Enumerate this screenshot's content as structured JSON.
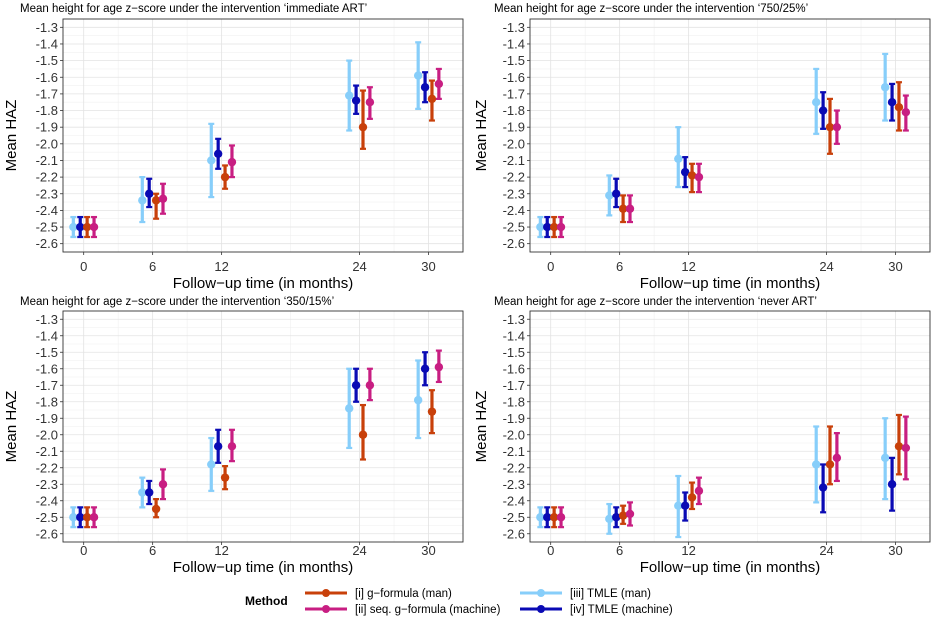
{
  "chart_data": {
    "type": "errorbar",
    "x_ticks": [
      0,
      6,
      12,
      24,
      30
    ],
    "y_ticks": [
      -1.3,
      -1.4,
      -1.5,
      -1.6,
      -1.7,
      -1.8,
      -1.9,
      -2.0,
      -2.1,
      -2.2,
      -2.3,
      -2.4,
      -2.5,
      -2.6
    ],
    "y_tick_labels": [
      "-1.3",
      "-1.4",
      "-1.5",
      "-1.6",
      "-1.7",
      "-1.8",
      "-1.9",
      "-2.0",
      "-2.1",
      "-2.2",
      "-2.3",
      "-2.4",
      "-2.5",
      "-2.6"
    ],
    "x_tick_labels": [
      "0",
      "6",
      "12",
      "24",
      "30"
    ],
    "xlim": [
      -1.8,
      33
    ],
    "ylim": [
      -2.65,
      -1.25
    ],
    "xlabel": "Follow−up time (in months)",
    "ylabel": "Mean HAZ",
    "legend": {
      "title": "Method",
      "position": "bottom",
      "entries": [
        {
          "method": "gform",
          "label": "[i] g−formula (man)"
        },
        {
          "method": "seqg",
          "label": "[ii] seq. g−formula (machine)"
        },
        {
          "method": "tmle_man",
          "label": "[iii] TMLE (man)"
        },
        {
          "method": "tmle_mach",
          "label": "[iv] TMLE (machine)"
        }
      ]
    },
    "method_colors": {
      "tmle_man": "#87cefa",
      "tmle_mach": "#0a0ab4",
      "gform": "#c8400a",
      "seqg": "#c81e82"
    },
    "method_offsets": {
      "tmle_man": -0.9,
      "tmle_mach": -0.3,
      "gform": 0.3,
      "seqg": 0.9
    },
    "panels": [
      {
        "title": "Mean height for age z−score  under the intervention ‘immediate ART’",
        "series": [
          {
            "method": "tmle_man",
            "points": [
              {
                "x": 0,
                "y": -2.5,
                "lo": -2.56,
                "hi": -2.44
              },
              {
                "x": 6,
                "y": -2.34,
                "lo": -2.47,
                "hi": -2.2
              },
              {
                "x": 12,
                "y": -2.1,
                "lo": -2.32,
                "hi": -1.88
              },
              {
                "x": 24,
                "y": -1.71,
                "lo": -1.92,
                "hi": -1.5
              },
              {
                "x": 30,
                "y": -1.59,
                "lo": -1.79,
                "hi": -1.39
              }
            ]
          },
          {
            "method": "tmle_mach",
            "points": [
              {
                "x": 0,
                "y": -2.5,
                "lo": -2.56,
                "hi": -2.44
              },
              {
                "x": 6,
                "y": -2.3,
                "lo": -2.38,
                "hi": -2.21
              },
              {
                "x": 12,
                "y": -2.06,
                "lo": -2.15,
                "hi": -1.97
              },
              {
                "x": 24,
                "y": -1.74,
                "lo": -1.82,
                "hi": -1.65
              },
              {
                "x": 30,
                "y": -1.66,
                "lo": -1.75,
                "hi": -1.57
              }
            ]
          },
          {
            "method": "gform",
            "points": [
              {
                "x": 0,
                "y": -2.5,
                "lo": -2.56,
                "hi": -2.44
              },
              {
                "x": 6,
                "y": -2.34,
                "lo": -2.45,
                "hi": -2.3
              },
              {
                "x": 12,
                "y": -2.2,
                "lo": -2.27,
                "hi": -2.13
              },
              {
                "x": 24,
                "y": -1.9,
                "lo": -2.03,
                "hi": -1.68
              },
              {
                "x": 30,
                "y": -1.73,
                "lo": -1.86,
                "hi": -1.62
              }
            ]
          },
          {
            "method": "seqg",
            "points": [
              {
                "x": 0,
                "y": -2.5,
                "lo": -2.56,
                "hi": -2.44
              },
              {
                "x": 6,
                "y": -2.33,
                "lo": -2.42,
                "hi": -2.24
              },
              {
                "x": 12,
                "y": -2.11,
                "lo": -2.2,
                "hi": -2.01
              },
              {
                "x": 24,
                "y": -1.75,
                "lo": -1.85,
                "hi": -1.66
              },
              {
                "x": 30,
                "y": -1.64,
                "lo": -1.73,
                "hi": -1.55
              }
            ]
          }
        ]
      },
      {
        "title": "Mean height for age z−score under the intervention ‘750/25%’",
        "series": [
          {
            "method": "tmle_man",
            "points": [
              {
                "x": 0,
                "y": -2.5,
                "lo": -2.56,
                "hi": -2.44
              },
              {
                "x": 6,
                "y": -2.31,
                "lo": -2.43,
                "hi": -2.19
              },
              {
                "x": 12,
                "y": -2.09,
                "lo": -2.26,
                "hi": -1.9
              },
              {
                "x": 24,
                "y": -1.75,
                "lo": -1.94,
                "hi": -1.55
              },
              {
                "x": 30,
                "y": -1.66,
                "lo": -1.86,
                "hi": -1.46
              }
            ]
          },
          {
            "method": "tmle_mach",
            "points": [
              {
                "x": 0,
                "y": -2.5,
                "lo": -2.56,
                "hi": -2.44
              },
              {
                "x": 6,
                "y": -2.3,
                "lo": -2.38,
                "hi": -2.21
              },
              {
                "x": 12,
                "y": -2.17,
                "lo": -2.26,
                "hi": -2.08
              },
              {
                "x": 24,
                "y": -1.8,
                "lo": -1.91,
                "hi": -1.69
              },
              {
                "x": 30,
                "y": -1.75,
                "lo": -1.86,
                "hi": -1.64
              }
            ]
          },
          {
            "method": "gform",
            "points": [
              {
                "x": 0,
                "y": -2.5,
                "lo": -2.56,
                "hi": -2.44
              },
              {
                "x": 6,
                "y": -2.39,
                "lo": -2.47,
                "hi": -2.31
              },
              {
                "x": 12,
                "y": -2.19,
                "lo": -2.29,
                "hi": -2.12
              },
              {
                "x": 24,
                "y": -1.9,
                "lo": -2.06,
                "hi": -1.73
              },
              {
                "x": 30,
                "y": -1.78,
                "lo": -1.92,
                "hi": -1.63
              }
            ]
          },
          {
            "method": "seqg",
            "points": [
              {
                "x": 0,
                "y": -2.5,
                "lo": -2.56,
                "hi": -2.44
              },
              {
                "x": 6,
                "y": -2.39,
                "lo": -2.47,
                "hi": -2.31
              },
              {
                "x": 12,
                "y": -2.2,
                "lo": -2.29,
                "hi": -2.12
              },
              {
                "x": 24,
                "y": -1.9,
                "lo": -2.0,
                "hi": -1.8
              },
              {
                "x": 30,
                "y": -1.81,
                "lo": -1.92,
                "hi": -1.71
              }
            ]
          }
        ]
      },
      {
        "title": "Mean height for age z−score under the intervention ‘350/15%’",
        "series": [
          {
            "method": "tmle_man",
            "points": [
              {
                "x": 0,
                "y": -2.5,
                "lo": -2.56,
                "hi": -2.44
              },
              {
                "x": 6,
                "y": -2.35,
                "lo": -2.44,
                "hi": -2.26
              },
              {
                "x": 12,
                "y": -2.18,
                "lo": -2.34,
                "hi": -2.02
              },
              {
                "x": 24,
                "y": -1.84,
                "lo": -2.08,
                "hi": -1.6
              },
              {
                "x": 30,
                "y": -1.79,
                "lo": -2.02,
                "hi": -1.55
              }
            ]
          },
          {
            "method": "tmle_mach",
            "points": [
              {
                "x": 0,
                "y": -2.5,
                "lo": -2.56,
                "hi": -2.44
              },
              {
                "x": 6,
                "y": -2.35,
                "lo": -2.42,
                "hi": -2.28
              },
              {
                "x": 12,
                "y": -2.07,
                "lo": -2.17,
                "hi": -1.97
              },
              {
                "x": 24,
                "y": -1.7,
                "lo": -1.8,
                "hi": -1.6
              },
              {
                "x": 30,
                "y": -1.6,
                "lo": -1.7,
                "hi": -1.5
              }
            ]
          },
          {
            "method": "gform",
            "points": [
              {
                "x": 0,
                "y": -2.5,
                "lo": -2.56,
                "hi": -2.44
              },
              {
                "x": 6,
                "y": -2.45,
                "lo": -2.5,
                "hi": -2.39
              },
              {
                "x": 12,
                "y": -2.26,
                "lo": -2.33,
                "hi": -2.19
              },
              {
                "x": 24,
                "y": -2.0,
                "lo": -2.15,
                "hi": -1.82
              },
              {
                "x": 30,
                "y": -1.86,
                "lo": -1.99,
                "hi": -1.73
              }
            ]
          },
          {
            "method": "seqg",
            "points": [
              {
                "x": 0,
                "y": -2.5,
                "lo": -2.56,
                "hi": -2.44
              },
              {
                "x": 6,
                "y": -2.3,
                "lo": -2.39,
                "hi": -2.21
              },
              {
                "x": 12,
                "y": -2.07,
                "lo": -2.16,
                "hi": -1.97
              },
              {
                "x": 24,
                "y": -1.7,
                "lo": -1.79,
                "hi": -1.6
              },
              {
                "x": 30,
                "y": -1.59,
                "lo": -1.68,
                "hi": -1.49
              }
            ]
          }
        ]
      },
      {
        "title": "Mean height for age z−score under the intervention ‘never ART’",
        "series": [
          {
            "method": "tmle_man",
            "points": [
              {
                "x": 0,
                "y": -2.5,
                "lo": -2.56,
                "hi": -2.44
              },
              {
                "x": 6,
                "y": -2.51,
                "lo": -2.6,
                "hi": -2.42
              },
              {
                "x": 12,
                "y": -2.43,
                "lo": -2.62,
                "hi": -2.25
              },
              {
                "x": 24,
                "y": -2.18,
                "lo": -2.41,
                "hi": -1.95
              },
              {
                "x": 30,
                "y": -2.14,
                "lo": -2.39,
                "hi": -1.9
              }
            ]
          },
          {
            "method": "tmle_mach",
            "points": [
              {
                "x": 0,
                "y": -2.5,
                "lo": -2.56,
                "hi": -2.44
              },
              {
                "x": 6,
                "y": -2.5,
                "lo": -2.56,
                "hi": -2.44
              },
              {
                "x": 12,
                "y": -2.43,
                "lo": -2.52,
                "hi": -2.35
              },
              {
                "x": 24,
                "y": -2.32,
                "lo": -2.47,
                "hi": -2.18
              },
              {
                "x": 30,
                "y": -2.3,
                "lo": -2.46,
                "hi": -2.14
              }
            ]
          },
          {
            "method": "gform",
            "points": [
              {
                "x": 0,
                "y": -2.5,
                "lo": -2.56,
                "hi": -2.44
              },
              {
                "x": 6,
                "y": -2.49,
                "lo": -2.54,
                "hi": -2.43
              },
              {
                "x": 12,
                "y": -2.38,
                "lo": -2.45,
                "hi": -2.29
              },
              {
                "x": 24,
                "y": -2.18,
                "lo": -2.3,
                "hi": -1.95
              },
              {
                "x": 30,
                "y": -2.07,
                "lo": -2.24,
                "hi": -1.88
              }
            ]
          },
          {
            "method": "seqg",
            "points": [
              {
                "x": 0,
                "y": -2.5,
                "lo": -2.56,
                "hi": -2.44
              },
              {
                "x": 6,
                "y": -2.48,
                "lo": -2.55,
                "hi": -2.41
              },
              {
                "x": 12,
                "y": -2.34,
                "lo": -2.42,
                "hi": -2.26
              },
              {
                "x": 24,
                "y": -2.14,
                "lo": -2.28,
                "hi": -1.99
              },
              {
                "x": 30,
                "y": -2.08,
                "lo": -2.27,
                "hi": -1.89
              }
            ]
          }
        ]
      }
    ]
  }
}
